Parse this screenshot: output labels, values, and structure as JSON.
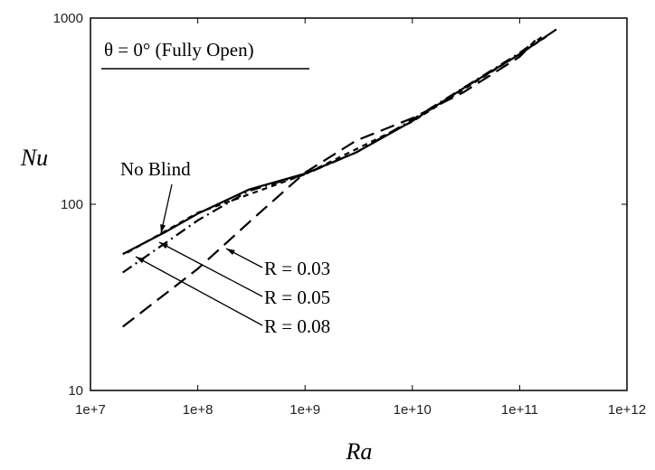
{
  "chart_data": {
    "type": "line",
    "title": "θ = 0° (Fully Open)",
    "xlabel": "Ra",
    "ylabel": "Nu",
    "xscale": "log",
    "yscale": "log",
    "xlim": [
      10000000,
      1000000000000
    ],
    "ylim": [
      10,
      1000
    ],
    "xticks": [
      {
        "value": 10000000,
        "label": "1e+7"
      },
      {
        "value": 100000000,
        "label": "1e+8"
      },
      {
        "value": 1000000000,
        "label": "1e+9"
      },
      {
        "value": 10000000000,
        "label": "1e+10"
      },
      {
        "value": 100000000000,
        "label": "1e+11"
      },
      {
        "value": 1000000000000,
        "label": "1e+12"
      }
    ],
    "yticks": [
      10,
      100,
      1000
    ],
    "series": [
      {
        "name": "No Blind",
        "color": "#000000",
        "dash": "solid",
        "x": [
          20000000,
          50000000,
          100000000,
          300000000,
          1000000000,
          3000000000,
          10000000000,
          30000000000,
          100000000000,
          220000000000
        ],
        "values": [
          54,
          71,
          89,
          120,
          146,
          190,
          280,
          420,
          640,
          870
        ]
      },
      {
        "name": "R = 0.03",
        "color": "#000000",
        "dash": "long",
        "x": [
          20000000,
          100000000,
          300000000,
          1000000000,
          3000000000,
          10000000000,
          30000000000,
          100000000000,
          140000000000
        ],
        "values": [
          22,
          45,
          80,
          148,
          220,
          290,
          400,
          620,
          760
        ]
      },
      {
        "name": "R = 0.05",
        "color": "#000000",
        "dash": "dashdot",
        "x": [
          20000000,
          50000000,
          100000000,
          300000000,
          1000000000,
          3000000000,
          10000000000,
          100000000000,
          160000000000
        ],
        "values": [
          43,
          62,
          82,
          118,
          145,
          190,
          285,
          650,
          790
        ]
      },
      {
        "name": "R = 0.08",
        "color": "#000000",
        "dash": "short",
        "x": [
          22000000,
          100000000,
          1000000000,
          10000000000,
          100000000000,
          180000000000
        ],
        "values": [
          55,
          90,
          145,
          278,
          640,
          800
        ]
      }
    ]
  }
}
